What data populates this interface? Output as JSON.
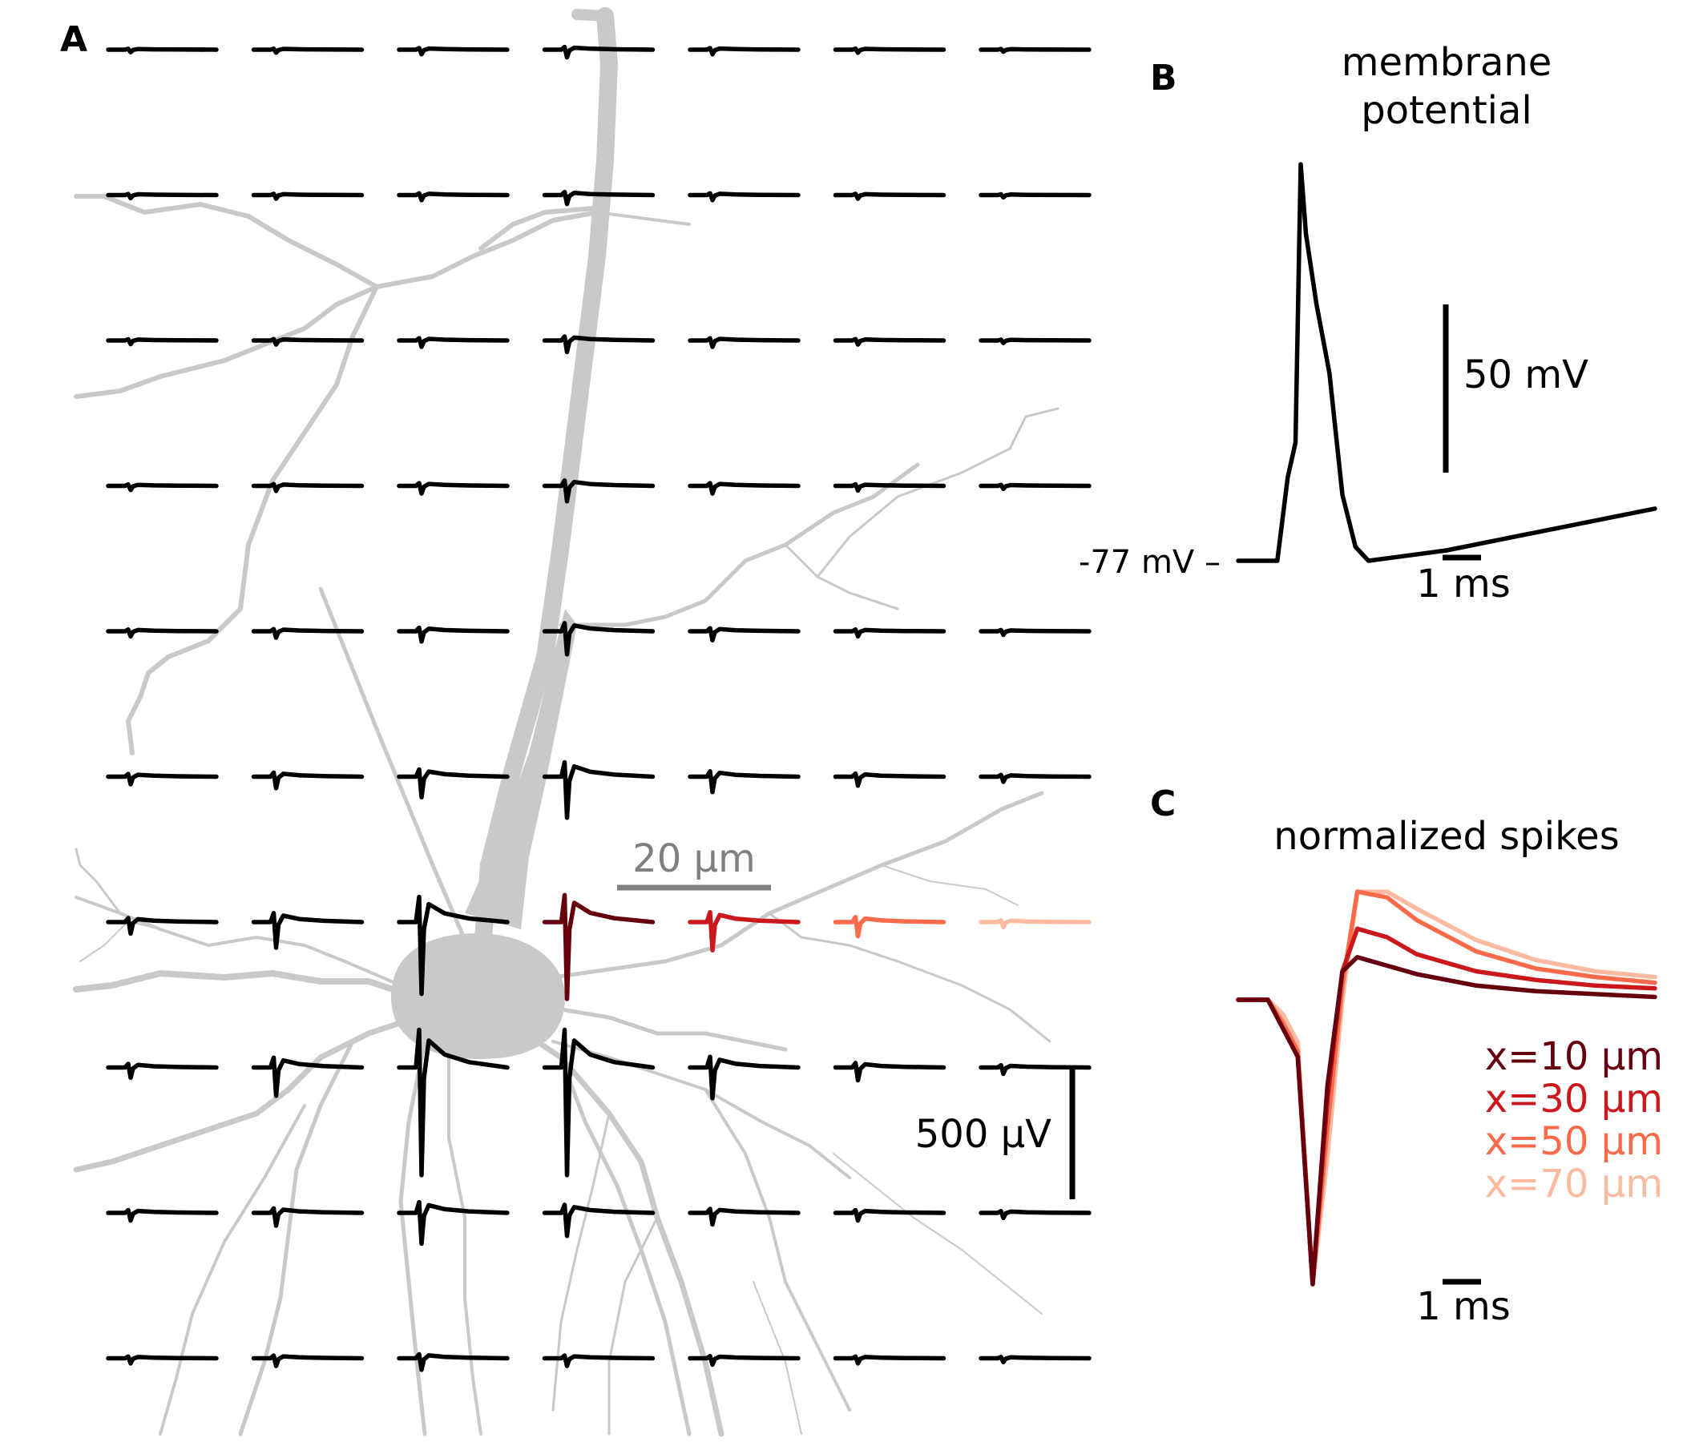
{
  "panels": {
    "a": {
      "letter": "A"
    },
    "b": {
      "letter": "B",
      "title_line1": "membrane",
      "title_line2": "potential",
      "resting_label": "-77 mV –",
      "scale_voltage": "50 mV",
      "scale_time": "1 ms"
    },
    "c": {
      "letter": "C",
      "title": "normalized spikes",
      "scale_time": "1 ms",
      "legend": [
        {
          "label": "x=10 μm",
          "color": "#67000d"
        },
        {
          "label": "x=30 μm",
          "color": "#cb181d"
        },
        {
          "label": "x=50 μm",
          "color": "#fb6a4a"
        },
        {
          "label": "x=70 μm",
          "color": "#fcbba1"
        }
      ]
    }
  },
  "scale_bars": {
    "distance": "20 μm",
    "potential": "500 μV"
  },
  "colors": {
    "trace": "#000000",
    "morphology": "#c9c9c9",
    "highlight_row": [
      "#67000d",
      "#cb181d",
      "#fb6a4a",
      "#fcbba1"
    ]
  },
  "chart_data": {
    "type": "line",
    "grid": {
      "rows": 10,
      "columns": 7,
      "highlighted_row": 7,
      "highlighted_columns": [
        4,
        5,
        6,
        7
      ],
      "peak_amplitude_uV": [
        [
          10,
          12,
          18,
          30,
          18,
          12,
          8
        ],
        [
          12,
          14,
          20,
          35,
          20,
          14,
          9
        ],
        [
          14,
          16,
          25,
          45,
          25,
          16,
          10
        ],
        [
          16,
          20,
          30,
          60,
          30,
          18,
          12
        ],
        [
          20,
          25,
          40,
          90,
          35,
          20,
          14
        ],
        [
          30,
          45,
          80,
          160,
          60,
          35,
          20
        ],
        [
          45,
          100,
          280,
          300,
          110,
          55,
          20
        ],
        [
          40,
          110,
          420,
          420,
          120,
          50,
          25
        ],
        [
          30,
          50,
          120,
          90,
          45,
          30,
          20
        ],
        [
          20,
          30,
          45,
          30,
          25,
          20,
          15
        ]
      ]
    },
    "membrane_potential": {
      "xlabel": "",
      "ylabel": "",
      "rest_mV": -77,
      "peak_mV": 30,
      "time_ms": [
        0,
        1,
        1.5,
        1.9,
        2.2,
        2.4,
        2.6,
        3.0,
        3.5,
        4.0,
        4.5,
        5.0,
        6.0,
        8.0,
        10.0,
        12.0,
        14.0,
        16.0
      ],
      "voltage_mV": [
        -77,
        -77,
        -77,
        -60,
        -50,
        30,
        10,
        -10,
        -30,
        -65,
        -80,
        -84,
        -83,
        -81,
        -78,
        -75,
        -72,
        -69
      ]
    },
    "normalized_spikes": {
      "time_ms": [
        0,
        1.0,
        1.5,
        2.0,
        2.5,
        3.0,
        3.5,
        4.0,
        5.0,
        6.0,
        8.0,
        10.0,
        12.0,
        14.0
      ],
      "series": [
        {
          "name": "x=10 μm",
          "values": [
            0,
            0,
            -0.1,
            -0.2,
            -1.0,
            -0.3,
            0.1,
            0.15,
            0.12,
            0.09,
            0.05,
            0.03,
            0.02,
            0.01
          ]
        },
        {
          "name": "x=30 μm",
          "values": [
            0,
            0,
            -0.1,
            -0.2,
            -1.0,
            -0.35,
            0.1,
            0.25,
            0.22,
            0.16,
            0.1,
            0.07,
            0.05,
            0.04
          ]
        },
        {
          "name": "x=50 μm",
          "values": [
            0,
            0,
            -0.08,
            -0.18,
            -1.0,
            -0.45,
            0.05,
            0.38,
            0.36,
            0.28,
            0.17,
            0.11,
            0.08,
            0.06
          ]
        },
        {
          "name": "x=70 μm",
          "values": [
            0,
            0,
            -0.05,
            -0.15,
            -1.0,
            -0.55,
            0.0,
            0.38,
            0.38,
            0.32,
            0.21,
            0.14,
            0.1,
            0.08
          ]
        }
      ]
    }
  }
}
